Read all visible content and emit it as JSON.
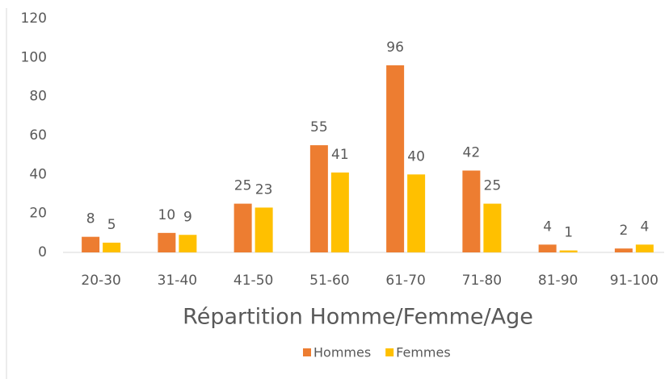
{
  "chart_data": {
    "type": "bar",
    "title": "Répartition Homme/Femme/Age",
    "categories": [
      "20-30",
      "31-40",
      "41-50",
      "51-60",
      "61-70",
      "71-80",
      "81-90",
      "91-100"
    ],
    "series": [
      {
        "name": "Hommes",
        "color": "#ED7D31",
        "values": [
          8,
          10,
          25,
          55,
          96,
          42,
          4,
          2
        ]
      },
      {
        "name": "Femmes",
        "color": "#FFC000",
        "values": [
          5,
          9,
          23,
          41,
          40,
          25,
          1,
          4
        ]
      }
    ],
    "ylim": [
      0,
      120
    ],
    "yticks": [
      0,
      20,
      40,
      60,
      80,
      100,
      120
    ],
    "grid": false,
    "legend": "bottom"
  }
}
